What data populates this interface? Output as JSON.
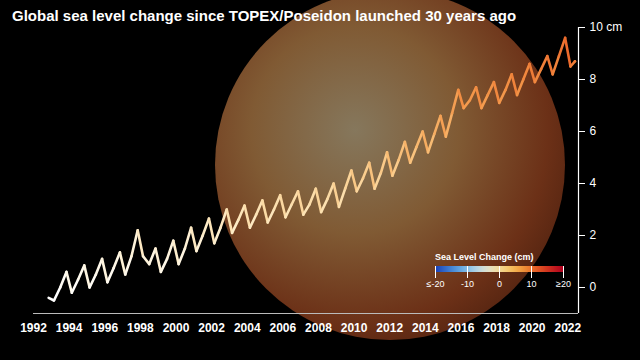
{
  "chart_data": {
    "type": "line",
    "title": "Global sea level change since TOPEX/Poseidon launched 30 years ago",
    "x": [
      1992.85,
      1993.15,
      1993.5,
      1993.85,
      1994.15,
      1994.5,
      1994.85,
      1995.15,
      1995.5,
      1995.85,
      1996.15,
      1996.5,
      1996.85,
      1997.15,
      1997.5,
      1997.85,
      1998.15,
      1998.5,
      1998.85,
      1999.15,
      1999.5,
      1999.85,
      2000.15,
      2000.5,
      2000.85,
      2001.15,
      2001.5,
      2001.85,
      2002.15,
      2002.5,
      2002.85,
      2003.15,
      2003.5,
      2003.85,
      2004.15,
      2004.5,
      2004.85,
      2005.15,
      2005.5,
      2005.85,
      2006.15,
      2006.5,
      2006.85,
      2007.15,
      2007.5,
      2007.85,
      2008.15,
      2008.5,
      2008.85,
      2009.15,
      2009.5,
      2009.85,
      2010.15,
      2010.5,
      2010.85,
      2011.15,
      2011.5,
      2011.85,
      2012.15,
      2012.5,
      2012.85,
      2013.15,
      2013.5,
      2013.85,
      2014.15,
      2014.5,
      2014.85,
      2015.15,
      2015.5,
      2015.85,
      2016.15,
      2016.5,
      2016.85,
      2017.15,
      2017.5,
      2017.85,
      2018.15,
      2018.5,
      2018.85,
      2019.15,
      2019.5,
      2019.85,
      2020.15,
      2020.5,
      2020.85,
      2021.15,
      2021.5,
      2021.85,
      2022.15,
      2022.4
    ],
    "values": [
      -0.4,
      -0.5,
      0.0,
      0.6,
      -0.2,
      0.3,
      0.85,
      0.0,
      0.5,
      1.1,
      0.2,
      0.75,
      1.35,
      0.5,
      1.2,
      2.2,
      1.2,
      0.9,
      1.5,
      0.6,
      1.1,
      1.8,
      0.9,
      1.5,
      2.3,
      1.4,
      2.0,
      2.65,
      1.7,
      2.3,
      3.0,
      2.1,
      2.6,
      3.15,
      2.3,
      2.8,
      3.35,
      2.5,
      3.0,
      3.55,
      2.7,
      3.2,
      3.7,
      2.8,
      3.2,
      3.8,
      2.9,
      3.4,
      4.0,
      3.1,
      3.8,
      4.5,
      3.7,
      4.2,
      4.8,
      3.8,
      4.4,
      5.2,
      4.3,
      4.9,
      5.6,
      4.8,
      5.4,
      6.0,
      5.2,
      5.9,
      6.6,
      5.8,
      6.7,
      7.6,
      6.9,
      7.2,
      7.7,
      6.9,
      7.4,
      7.9,
      7.1,
      7.6,
      8.2,
      7.4,
      8.0,
      8.6,
      7.9,
      8.4,
      8.9,
      8.2,
      8.9,
      9.6,
      8.5,
      8.7
    ],
    "xlim": [
      1992,
      2022.6
    ],
    "ylim": [
      -1,
      10
    ],
    "xticks": [
      1992,
      1994,
      1996,
      1998,
      2000,
      2002,
      2004,
      2006,
      2008,
      2010,
      2012,
      2014,
      2016,
      2018,
      2020,
      2022
    ],
    "yticks": [
      0,
      2,
      4,
      6,
      8,
      {
        "value": 10,
        "label": "10 cm"
      }
    ],
    "grid": false,
    "colorbar": {
      "title": "Sea Level Change (cm)",
      "range": [
        -20,
        20
      ],
      "ticks": [
        {
          "value": -20,
          "label": "≤-20"
        },
        -10,
        0,
        10,
        {
          "value": 20,
          "label": "≥20"
        }
      ]
    }
  }
}
